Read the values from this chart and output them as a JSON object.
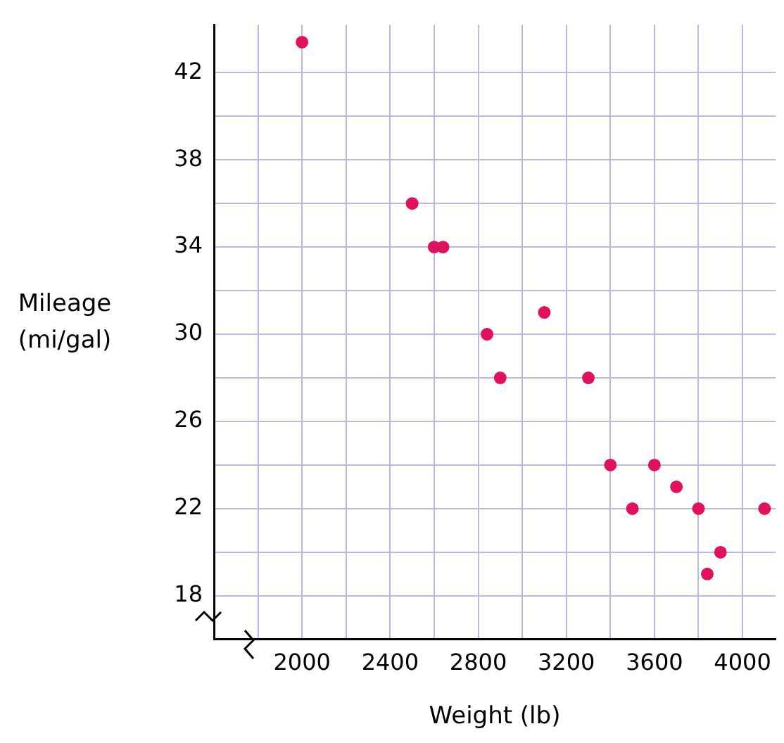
{
  "chart_data": {
    "type": "scatter",
    "xlabel": "Weight (lb)",
    "ylabel": "Mileage\n(mi/gal)",
    "x": [
      2000,
      2500,
      2600,
      2640,
      2840,
      2900,
      3100,
      3300,
      3400,
      3500,
      3600,
      3700,
      3800,
      3840,
      3900,
      4100
    ],
    "series": [
      {
        "color": "#e0115f",
        "values": [
          43.4,
          36,
          34,
          34,
          30,
          28,
          31,
          28,
          24,
          22,
          24,
          23,
          22,
          19,
          20,
          22
        ]
      }
    ],
    "xlim": [
      1600,
      4150
    ],
    "ylim": [
      16,
      44.2
    ],
    "xticks": [
      {
        "value": 1800,
        "label": null
      },
      2000,
      {
        "value": 2200,
        "label": null
      },
      2400,
      {
        "value": 2600,
        "label": null
      },
      2800,
      {
        "value": 3000,
        "label": null
      },
      3200,
      {
        "value": 3400,
        "label": null
      },
      3600,
      {
        "value": 3800,
        "label": null
      },
      4000
    ],
    "yticks": [
      18,
      {
        "value": 20,
        "label": null
      },
      22,
      {
        "value": 24,
        "label": null
      },
      26,
      {
        "value": 28,
        "label": null
      },
      30,
      {
        "value": 32,
        "label": null
      },
      34,
      {
        "value": 36,
        "label": null
      },
      38,
      {
        "value": 40,
        "label": null
      },
      42
    ],
    "grid": true,
    "marker": "circle",
    "legend": false
  }
}
